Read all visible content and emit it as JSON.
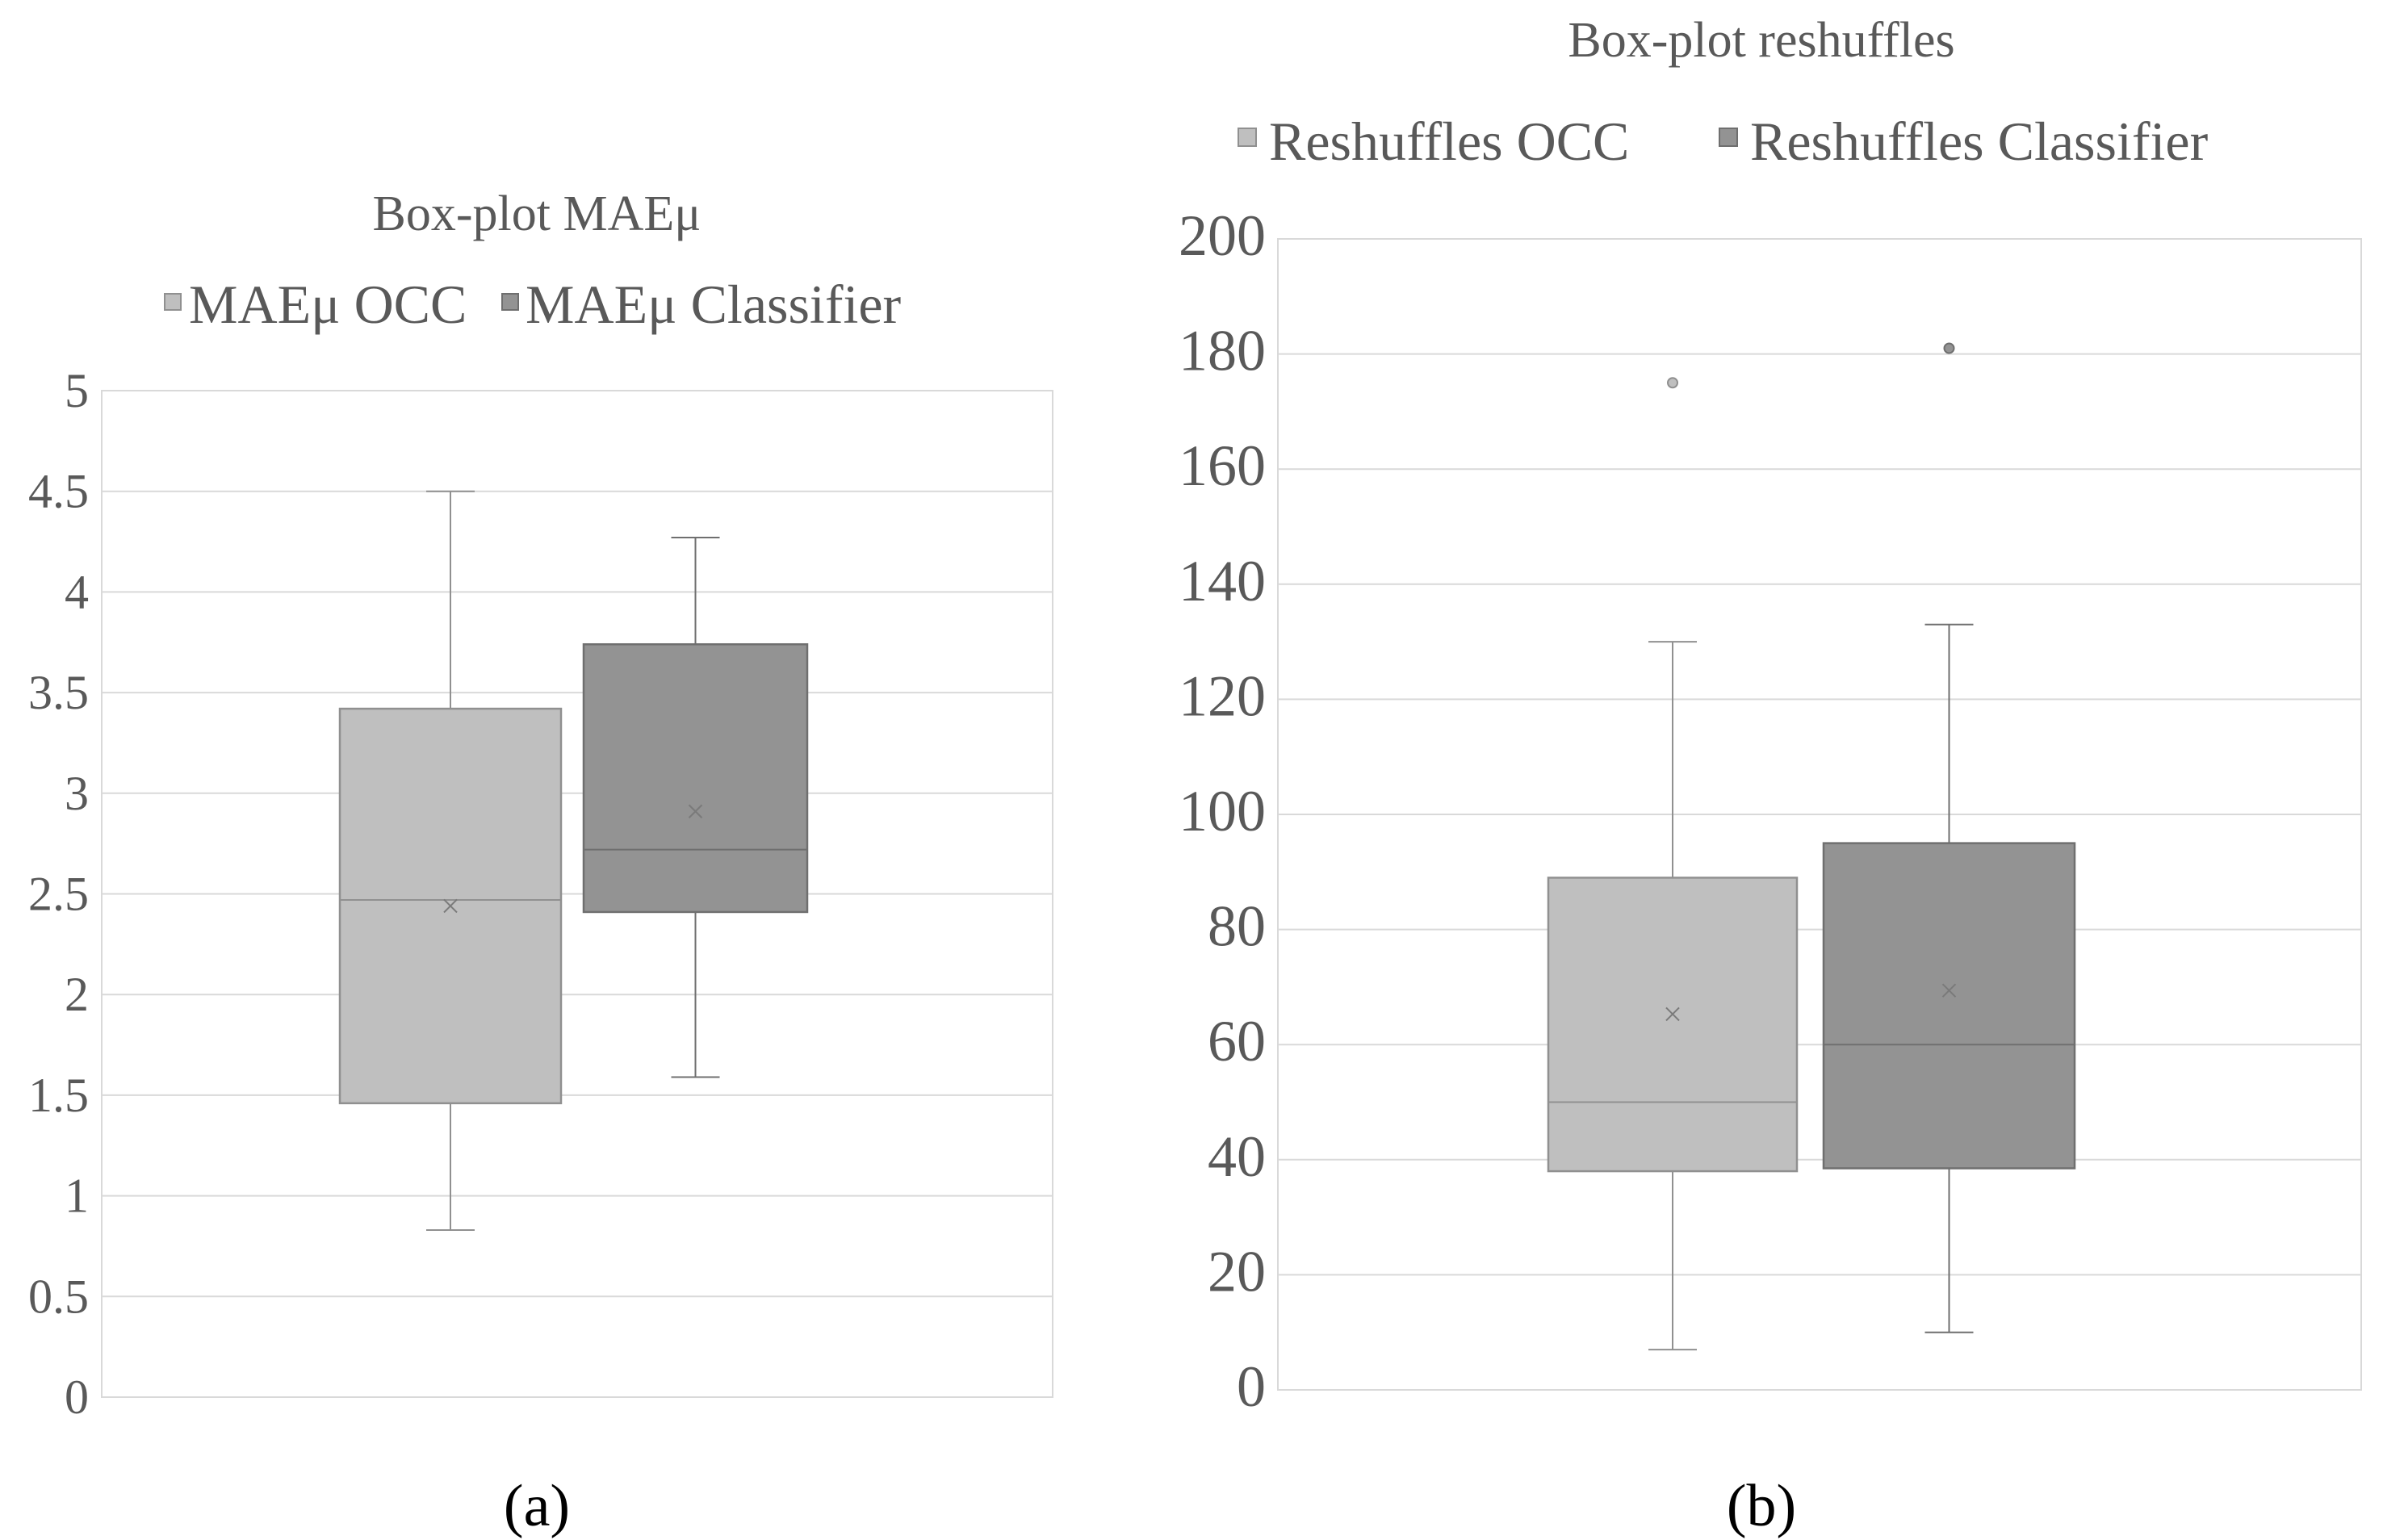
{
  "colors": {
    "series_a": "#bfbfbf",
    "series_b": "#939393",
    "stroke_a": "#909090",
    "stroke_b": "#6f6f6f",
    "grid": "#d9d9d9",
    "text": "#595959"
  },
  "chart_data": [
    {
      "type": "boxplot",
      "title": "Box-plot MAEμ",
      "caption": "(a)",
      "ylim": [
        0,
        5
      ],
      "yticks": [
        "0",
        "0.5",
        "1",
        "1.5",
        "2",
        "2.5",
        "3",
        "3.5",
        "4",
        "4.5",
        "5"
      ],
      "legend_position": "top",
      "series": [
        {
          "name": "MAEμ OCC",
          "whisker_low": 0.83,
          "q1": 1.46,
          "median": 2.47,
          "q3": 3.42,
          "whisker_high": 4.5,
          "mean": 2.44,
          "outliers": []
        },
        {
          "name": "MAEμ Classifier",
          "whisker_low": 1.59,
          "q1": 2.41,
          "median": 2.72,
          "q3": 3.74,
          "whisker_high": 4.27,
          "mean": 2.91,
          "outliers": []
        }
      ]
    },
    {
      "type": "boxplot",
      "title": "Box-plot reshuffles",
      "caption": "(b)",
      "ylim": [
        0,
        200
      ],
      "yticks": [
        "0",
        "20",
        "40",
        "60",
        "80",
        "100",
        "120",
        "140",
        "160",
        "180",
        "200"
      ],
      "legend_position": "top",
      "series": [
        {
          "name": "Reshuffles OCC",
          "whisker_low": 7,
          "q1": 38,
          "median": 50,
          "q3": 89,
          "whisker_high": 130,
          "mean": 65.3,
          "outliers": [
            175
          ]
        },
        {
          "name": "Reshuffles Classifier",
          "whisker_low": 10,
          "q1": 38.5,
          "median": 60,
          "q3": 95,
          "whisker_high": 133,
          "mean": 69.4,
          "outliers": [
            181
          ]
        }
      ]
    }
  ]
}
